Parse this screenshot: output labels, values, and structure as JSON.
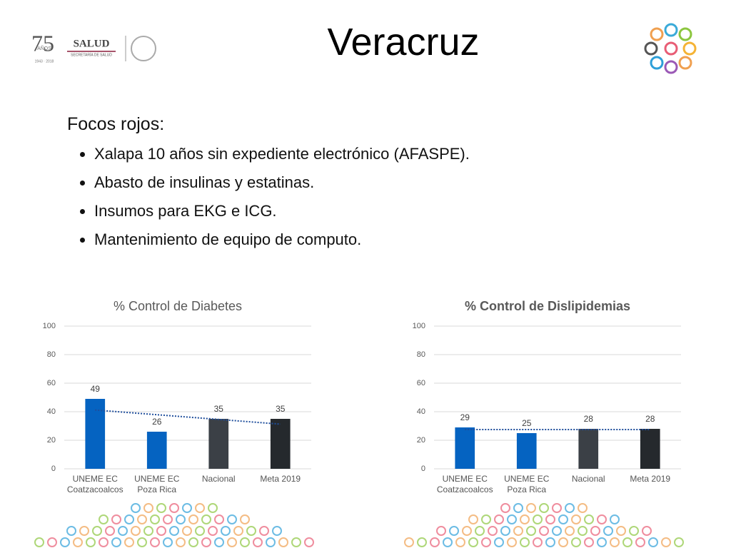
{
  "header": {
    "title": "Veracruz",
    "logo_years": "75",
    "logo_anos": "AÑOS",
    "logo_dates": "1943 · 2018",
    "logo_salud": "SALUD",
    "logo_secretaria": "SECRETARÍA DE SALUD"
  },
  "body": {
    "heading": "Focos rojos:",
    "bullets": [
      "Xalapa 10 años sin expediente electrónico (AFASPE).",
      "Abasto de insulinas y estatinas.",
      "Insumos para EKG e ICG.",
      "Mantenimiento de equipo de computo."
    ]
  },
  "chart_data": [
    {
      "type": "bar",
      "title": "% Control de Diabetes",
      "title_bold": false,
      "categories": [
        "UNEME EC\nCoatzacoalcos",
        "UNEME EC\nPoza Rica",
        "Nacional",
        "Meta 2019"
      ],
      "values": [
        49,
        26,
        35,
        35
      ],
      "colors": [
        "#0563c1",
        "#0563c1",
        "#3b4046",
        "#25292d"
      ],
      "ylim": [
        0,
        100
      ],
      "yticks": [
        0,
        20,
        40,
        60,
        80,
        100
      ],
      "grid": true,
      "trendline": "linear",
      "trend_color": "#1f4e9c"
    },
    {
      "type": "bar",
      "title": "% Control de Dislipidemias",
      "title_bold": true,
      "categories": [
        "UNEME EC\nCoatzacoalcos",
        "UNEME EC\nPoza Rica",
        "Nacional",
        "Meta 2019"
      ],
      "values": [
        29,
        25,
        28,
        28
      ],
      "colors": [
        "#0563c1",
        "#0563c1",
        "#3b4046",
        "#25292d"
      ],
      "ylim": [
        0,
        100
      ],
      "yticks": [
        0,
        20,
        40,
        60,
        80,
        100
      ],
      "grid": true,
      "trendline": "linear",
      "trend_color": "#1f4e9c"
    }
  ]
}
